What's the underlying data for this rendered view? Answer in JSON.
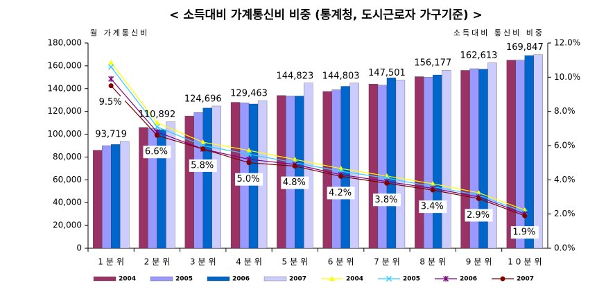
{
  "chart_data": {
    "type": "bar",
    "title": "< 소득대비 가계통신비 비중 (통계청, 도시근로자 가구기준) >",
    "y_label": "월 가계통신비",
    "y2_label": "소득대비 통신비 비중",
    "categories": [
      "1분위",
      "2분위",
      "3분위",
      "4분위",
      "5분위",
      "6분위",
      "7분위",
      "8분위",
      "9분위",
      "10분위"
    ],
    "ylim": [
      0,
      180000
    ],
    "yticks": [
      0,
      {
        "value": 20000,
        "label": "20,000"
      },
      {
        "value": 40000,
        "label": "40,000"
      },
      {
        "value": 60000,
        "label": "60,000"
      },
      {
        "value": 80000,
        "label": "80,000"
      },
      {
        "value": 100000,
        "label": "100,000"
      },
      {
        "value": 120000,
        "label": "120,000"
      },
      {
        "value": 140000,
        "label": "140,000"
      },
      {
        "value": 160000,
        "label": "160,000"
      },
      {
        "value": 180000,
        "label": "180,000"
      }
    ],
    "y2lim": [
      0,
      12
    ],
    "y2ticks": [
      {
        "value": 0,
        "label": "0.0%"
      },
      {
        "value": 2,
        "label": "2.0%"
      },
      {
        "value": 4,
        "label": "4.0%"
      },
      {
        "value": 6,
        "label": "6.0%"
      },
      {
        "value": 8,
        "label": "8.0%"
      },
      {
        "value": 10,
        "label": "10.0%"
      },
      {
        "value": 12,
        "label": "12.0%"
      }
    ],
    "series": [
      {
        "name": "2004",
        "type": "bar",
        "color": "#993366",
        "values": [
          86000,
          106000,
          116000,
          128000,
          134000,
          137500,
          144000,
          150500,
          156000,
          165000
        ]
      },
      {
        "name": "2005",
        "type": "bar",
        "color": "#9999ff",
        "values": [
          90000,
          105000,
          119000,
          127500,
          133500,
          139000,
          143000,
          150000,
          157500,
          165000
        ]
      },
      {
        "name": "2006",
        "type": "bar",
        "color": "#0066cc",
        "values": [
          91000,
          104000,
          123000,
          126500,
          133500,
          142000,
          149500,
          152000,
          157000,
          169000
        ]
      },
      {
        "name": "2007",
        "type": "bar",
        "color": "#ccccff",
        "values": [
          93719,
          110892,
          124696,
          129463,
          144823,
          144803,
          147501,
          156177,
          162613,
          169847
        ],
        "value_labels": [
          "93,719",
          "110,892",
          "124,696",
          "129,463",
          "144,823",
          "144,803",
          "147,501",
          "156,177",
          "162,613",
          "169,847"
        ]
      },
      {
        "name": "2004",
        "type": "line",
        "axis": "y2",
        "marker": "triangle",
        "color": "#ffff00",
        "values": [
          10.86,
          7.34,
          6.2,
          5.72,
          5.19,
          4.66,
          4.22,
          3.77,
          3.24,
          2.23
        ]
      },
      {
        "name": "2005",
        "type": "line",
        "axis": "y2",
        "marker": "cross",
        "color": "#33ccff",
        "values": [
          10.6,
          7.1,
          6.0,
          5.5,
          5.0,
          4.5,
          4.1,
          3.6,
          3.1,
          2.1
        ]
      },
      {
        "name": "2006",
        "type": "line",
        "axis": "y2",
        "marker": "star",
        "color": "#800080",
        "values": [
          9.9,
          6.8,
          5.8,
          5.2,
          4.9,
          4.3,
          3.9,
          3.5,
          3.0,
          2.0
        ]
      },
      {
        "name": "2007",
        "type": "line",
        "axis": "y2",
        "marker": "circle",
        "color": "#800000",
        "values": [
          9.5,
          6.6,
          5.8,
          5.0,
          4.8,
          4.2,
          3.8,
          3.4,
          2.9,
          1.9
        ],
        "value_labels": [
          "9.5%",
          "6.6%",
          "5.8%",
          "5.0%",
          "4.8%",
          "4.2%",
          "3.8%",
          "3.4%",
          "2.9%",
          "1.9%"
        ]
      }
    ]
  }
}
